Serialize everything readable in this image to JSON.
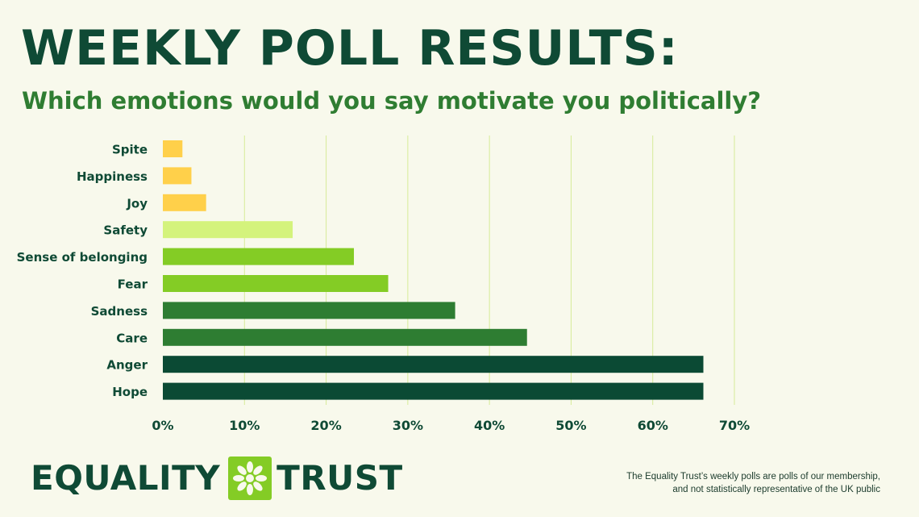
{
  "header": {
    "title": "WEEKLY POLL RESULTS:",
    "subtitle": "Which emotions would you say motivate you politically?"
  },
  "chart_data": {
    "type": "bar",
    "orientation": "horizontal",
    "categories": [
      "Spite",
      "Happiness",
      "Joy",
      "Safety",
      "Sense of belonging",
      "Fear",
      "Sadness",
      "Care",
      "Anger",
      "Hope"
    ],
    "values": [
      2.4,
      3.5,
      5.3,
      15.9,
      23.4,
      27.6,
      35.8,
      44.6,
      66.2,
      66.2
    ],
    "bar_colors": [
      "#ffd04a",
      "#ffd04a",
      "#ffd04a",
      "#d4f37c",
      "#84cc25",
      "#84cc25",
      "#2e7d32",
      "#2e7d32",
      "#0b4a34",
      "#0b4a34"
    ],
    "xlim": [
      0,
      70
    ],
    "xticks": [
      "0%",
      "10%",
      "20%",
      "30%",
      "40%",
      "50%",
      "60%",
      "70%"
    ],
    "grid": true,
    "gridline_color": "#d6ec98",
    "xlabel": "",
    "ylabel": ""
  },
  "brand": {
    "left_word": "EQUALITY",
    "right_word": "TRUST",
    "mark_icon": "flower-icon",
    "brand_color": "#0f4a35",
    "mark_color": "#84cc25"
  },
  "footnote": {
    "line1": "The Equality Trust’s weekly polls are polls of our membership,",
    "line2": "and not statistically representative of the UK public"
  }
}
